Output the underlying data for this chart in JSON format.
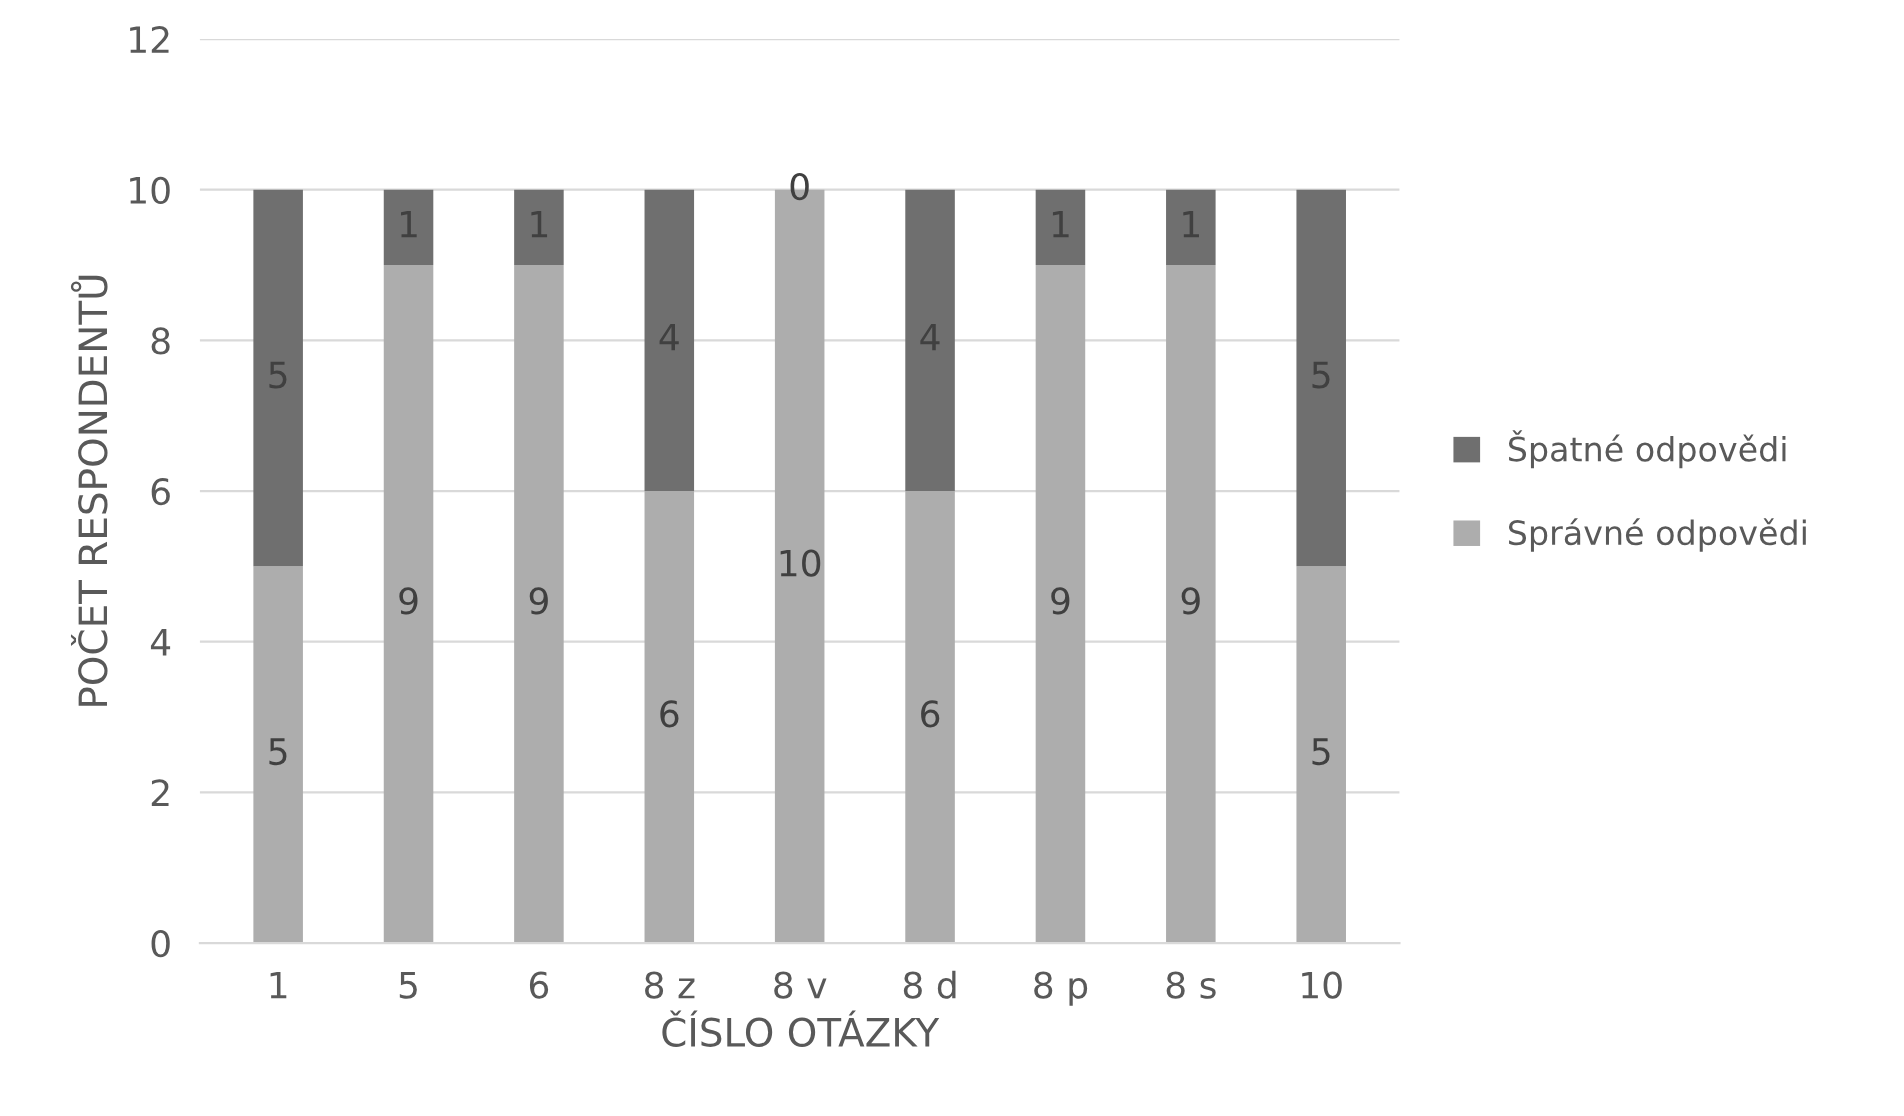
{
  "chart_data": {
    "type": "bar",
    "stacked": true,
    "xlabel": "ČÍSLO OTÁZKY",
    "ylabel": "POČET RESPONDENTŮ",
    "categories": [
      "1",
      "5",
      "6",
      "8 z",
      "8 v",
      "8 d",
      "8 p",
      "8 s",
      "10"
    ],
    "series": [
      {
        "name": "Správné odpovědi",
        "color": "#adadad",
        "values": [
          5,
          9,
          9,
          6,
          10,
          6,
          9,
          9,
          5
        ]
      },
      {
        "name": "Špatné odpovědi",
        "color": "#6f6f6f",
        "values": [
          5,
          1,
          1,
          4,
          0,
          4,
          1,
          1,
          5
        ]
      }
    ],
    "ylim": [
      0,
      12
    ],
    "yticks": [
      0,
      2,
      4,
      6,
      8,
      10,
      12
    ],
    "grid": "y",
    "legend": "right",
    "data_labels": true
  }
}
